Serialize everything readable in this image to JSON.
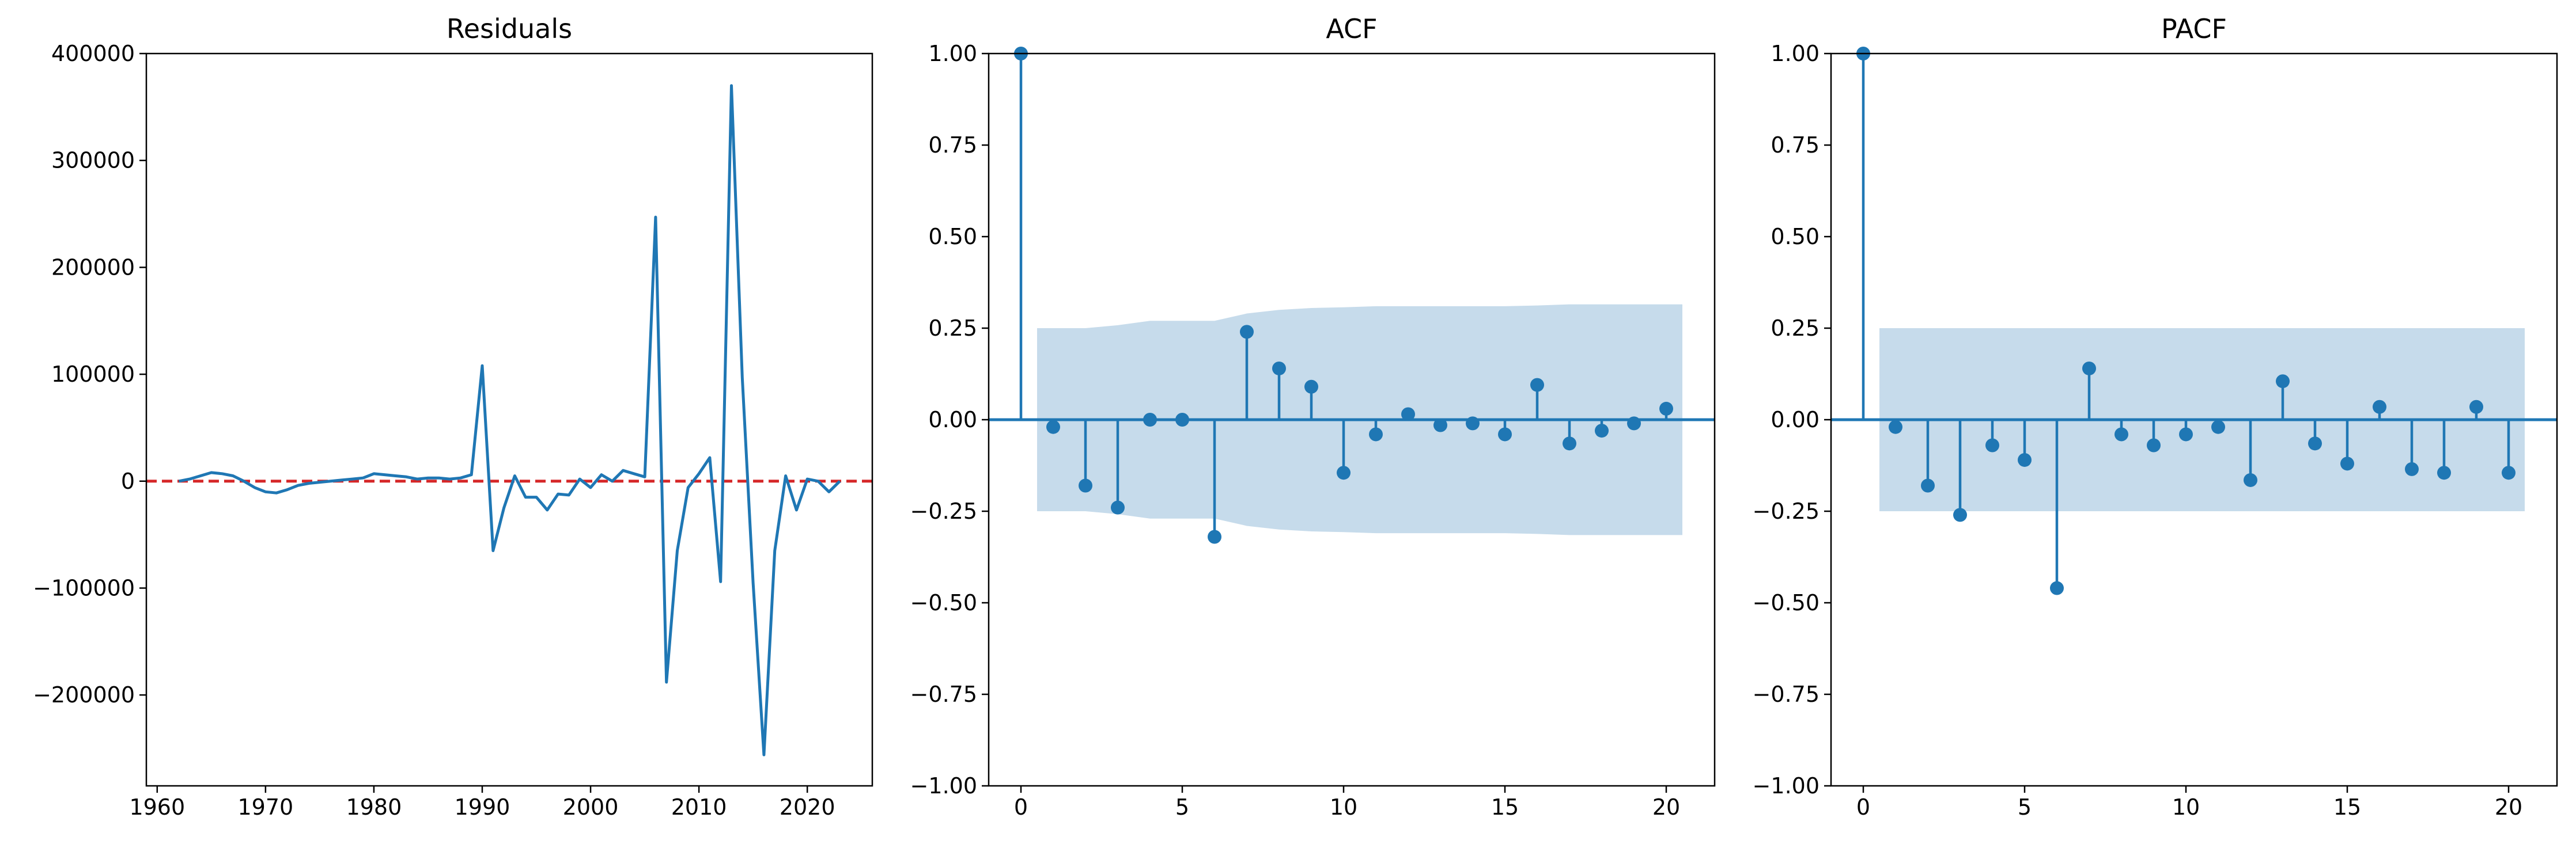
{
  "figure": {
    "colors": {
      "line": "#1f77b4",
      "zero_line": "#d62728",
      "confidence_band": "#c6dbeb",
      "axes": "#000000"
    }
  },
  "chart_data": [
    {
      "type": "line",
      "title": "Residuals",
      "xlabel": "",
      "ylabel": "",
      "xlim": [
        1959,
        2026
      ],
      "ylim": [
        -285000,
        400000
      ],
      "xticks": [
        1960,
        1970,
        1980,
        1990,
        2000,
        2010,
        2020
      ],
      "xtick_labels": [
        "1960",
        "1970",
        "1980",
        "1990",
        "2000",
        "2010",
        "2020"
      ],
      "yticks": [
        -200000,
        -100000,
        0,
        100000,
        200000,
        300000,
        400000
      ],
      "ytick_labels": [
        "−200000",
        "−100000",
        "0",
        "100000",
        "200000",
        "300000",
        "400000"
      ],
      "reference_line": {
        "y": 0,
        "style": "dashed",
        "color": "#d62728"
      },
      "series": [
        {
          "x": [
            1962,
            1963,
            1964,
            1965,
            1966,
            1967,
            1968,
            1969,
            1970,
            1971,
            1972,
            1973,
            1974,
            1975,
            1976,
            1977,
            1978,
            1979,
            1980,
            1981,
            1982,
            1983,
            1984,
            1985,
            1986,
            1987,
            1988,
            1989,
            1990,
            1991,
            1992,
            1993,
            1994,
            1995,
            1996,
            1997,
            1998,
            1999,
            2000,
            2001,
            2002,
            2003,
            2004,
            2005,
            2006,
            2007,
            2008,
            2009,
            2010,
            2011,
            2012,
            2013,
            2014,
            2015,
            2016,
            2017,
            2018,
            2019,
            2020,
            2021,
            2022,
            2023
          ],
          "values": [
            0,
            2000,
            5000,
            8000,
            7000,
            5000,
            0,
            -6000,
            -10000,
            -11000,
            -8000,
            -4000,
            -2000,
            -1000,
            0,
            1000,
            2000,
            3000,
            7000,
            6000,
            5000,
            4000,
            2000,
            3000,
            3000,
            2000,
            3000,
            6000,
            108000,
            -65000,
            -25000,
            5000,
            -15000,
            -15000,
            -27000,
            -12000,
            -13000,
            2000,
            -6000,
            6000,
            0,
            10000,
            7000,
            4000,
            247000,
            -188000,
            -65000,
            -6000,
            7000,
            22000,
            -94000,
            370000,
            97000,
            -95000,
            -256000,
            -65000,
            5000,
            -27000,
            2000,
            0,
            -10000,
            0
          ]
        }
      ]
    },
    {
      "type": "stem",
      "title": "ACF",
      "xlabel": "",
      "ylabel": "",
      "xlim": [
        -1,
        21.5
      ],
      "ylim": [
        -1.0,
        1.0
      ],
      "xticks": [
        0,
        5,
        10,
        15,
        20
      ],
      "xtick_labels": [
        "0",
        "5",
        "10",
        "15",
        "20"
      ],
      "yticks": [
        -1.0,
        -0.75,
        -0.5,
        -0.25,
        0.0,
        0.25,
        0.5,
        0.75,
        1.0
      ],
      "ytick_labels": [
        "−1.00",
        "−0.75",
        "−0.50",
        "−0.25",
        "0.00",
        "0.25",
        "0.50",
        "0.75",
        "1.00"
      ],
      "lags": [
        0,
        1,
        2,
        3,
        4,
        5,
        6,
        7,
        8,
        9,
        10,
        11,
        12,
        13,
        14,
        15,
        16,
        17,
        18,
        19,
        20
      ],
      "values": [
        1.0,
        -0.02,
        -0.18,
        -0.24,
        0.0,
        0.0,
        -0.32,
        0.24,
        0.14,
        0.09,
        -0.145,
        -0.04,
        0.015,
        -0.015,
        -0.01,
        -0.04,
        0.095,
        -0.065,
        -0.03,
        -0.01,
        0.03
      ],
      "confidence_band": {
        "x": [
          0.5,
          1,
          2,
          3,
          4,
          5,
          6,
          7,
          8,
          9,
          10,
          11,
          12,
          13,
          14,
          15,
          16,
          17,
          18,
          19,
          20,
          20.5
        ],
        "upper": [
          0.25,
          0.25,
          0.25,
          0.258,
          0.27,
          0.27,
          0.27,
          0.29,
          0.3,
          0.305,
          0.307,
          0.31,
          0.31,
          0.31,
          0.31,
          0.31,
          0.312,
          0.315,
          0.315,
          0.315,
          0.315,
          0.315
        ]
      }
    },
    {
      "type": "stem",
      "title": "PACF",
      "xlabel": "",
      "ylabel": "",
      "xlim": [
        -1,
        21.5
      ],
      "ylim": [
        -1.0,
        1.0
      ],
      "xticks": [
        0,
        5,
        10,
        15,
        20
      ],
      "xtick_labels": [
        "0",
        "5",
        "10",
        "15",
        "20"
      ],
      "yticks": [
        -1.0,
        -0.75,
        -0.5,
        -0.25,
        0.0,
        0.25,
        0.5,
        0.75,
        1.0
      ],
      "ytick_labels": [
        "−1.00",
        "−0.75",
        "−0.50",
        "−0.25",
        "0.00",
        "0.25",
        "0.50",
        "0.75",
        "1.00"
      ],
      "lags": [
        0,
        1,
        2,
        3,
        4,
        5,
        6,
        7,
        8,
        9,
        10,
        11,
        12,
        13,
        14,
        15,
        16,
        17,
        18,
        19,
        20
      ],
      "values": [
        1.0,
        -0.02,
        -0.18,
        -0.26,
        -0.07,
        -0.11,
        -0.46,
        0.14,
        -0.04,
        -0.07,
        -0.04,
        -0.02,
        -0.165,
        0.105,
        -0.065,
        -0.12,
        0.035,
        -0.135,
        -0.145,
        0.035,
        -0.145
      ],
      "confidence_band": {
        "x": [
          0.5,
          20.5
        ],
        "upper": [
          0.25,
          0.25
        ]
      }
    }
  ]
}
